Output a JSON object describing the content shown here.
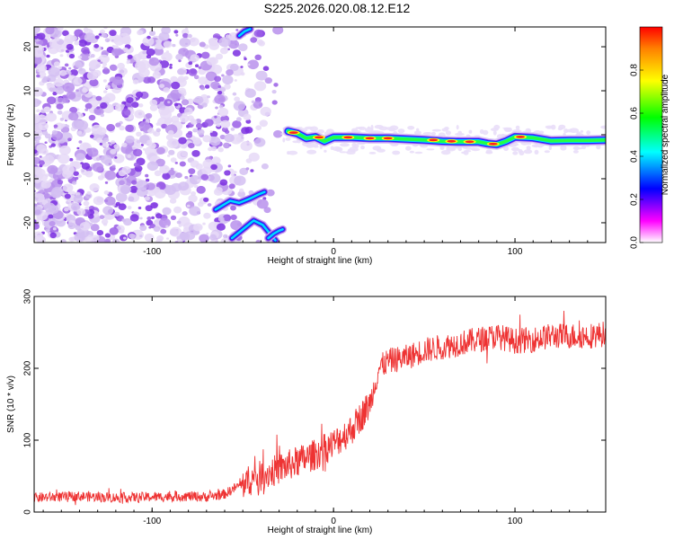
{
  "title": "S225.2026.020.08.12.E12",
  "chart_data": [
    {
      "type": "heatmap",
      "xlabel": "Height of straight line (km)",
      "ylabel": "Frequency (Hz)",
      "xlim": [
        -165,
        150
      ],
      "ylim": [
        -24.5,
        24.5
      ],
      "xticks": [
        -100,
        0,
        100
      ],
      "xtick_labels": [
        "-100",
        "0",
        "100"
      ],
      "yticks": [
        -20,
        -10,
        0,
        10,
        20
      ],
      "ytick_labels": [
        "-20",
        "-10",
        "0",
        "10",
        "20"
      ],
      "colorbar": {
        "label": "Normalized spectral amplitude",
        "range": [
          0,
          1
        ],
        "ticks": [
          0.0,
          0.2,
          0.4,
          0.6,
          0.8
        ],
        "tick_labels": [
          "0.0",
          "0.2",
          "0.4",
          "0.6",
          "0.8"
        ],
        "colormap": [
          "#ffffff",
          "#ff00ff",
          "#0000ff",
          "#00ffff",
          "#00ff00",
          "#ffff00",
          "#ff0000"
        ]
      },
      "noise_region_x": [
        -165,
        -30
      ],
      "signal_trace": {
        "x": [
          -25,
          -20,
          -15,
          -10,
          -5,
          0,
          10,
          20,
          30,
          40,
          50,
          60,
          70,
          80,
          85,
          90,
          95,
          100,
          110,
          120,
          130,
          140,
          150
        ],
        "frequency": [
          0.8,
          0.3,
          -0.8,
          -0.5,
          -1.5,
          -0.6,
          -0.6,
          -0.8,
          -0.8,
          -1.0,
          -1.2,
          -1.5,
          -1.6,
          -1.6,
          -2.0,
          -2.2,
          -1.5,
          -0.5,
          -0.7,
          -1.4,
          -1.3,
          -1.3,
          -1.2
        ]
      },
      "side_traces": [
        {
          "x": [
            -65,
            -57,
            -52,
            -46,
            -41,
            -38
          ],
          "frequency": [
            -17,
            -15,
            -15.5,
            -14.5,
            -13.5,
            -13
          ]
        },
        {
          "x": [
            -56,
            -50,
            -44,
            -39,
            -35,
            -32
          ],
          "frequency": [
            -23.5,
            -21.5,
            -19.5,
            -20.5,
            -22.5,
            -24
          ]
        },
        {
          "x": [
            -36,
            -33,
            -30,
            -28
          ],
          "frequency": [
            -23.5,
            -22.5,
            -21.8,
            -21.5
          ]
        },
        {
          "x": [
            -52,
            -49,
            -46
          ],
          "frequency": [
            22.5,
            23.5,
            24
          ]
        }
      ]
    },
    {
      "type": "line",
      "xlabel": "Height of straight line (km)",
      "ylabel": "SNR (10 * v/v)",
      "xlim": [
        -165,
        150
      ],
      "ylim": [
        0,
        300
      ],
      "xticks": [
        -100,
        0,
        100
      ],
      "xtick_labels": [
        "-100",
        "0",
        "100"
      ],
      "yticks": [
        0,
        100,
        200,
        300
      ],
      "ytick_labels": [
        "0",
        "100",
        "200",
        "300"
      ],
      "series": [
        {
          "name": "SNR",
          "color": "#ee3333",
          "x": [
            -165,
            -140,
            -120,
            -100,
            -80,
            -70,
            -60,
            -50,
            -40,
            -30,
            -20,
            -10,
            0,
            10,
            20,
            25,
            30,
            40,
            50,
            60,
            70,
            80,
            90,
            100,
            110,
            120,
            130,
            140,
            150
          ],
          "value": [
            20,
            22,
            20,
            21,
            22,
            21,
            25,
            40,
            50,
            60,
            70,
            80,
            95,
            115,
            150,
            200,
            210,
            215,
            225,
            230,
            235,
            240,
            245,
            238,
            240,
            245,
            245,
            245,
            248
          ]
        }
      ]
    }
  ]
}
